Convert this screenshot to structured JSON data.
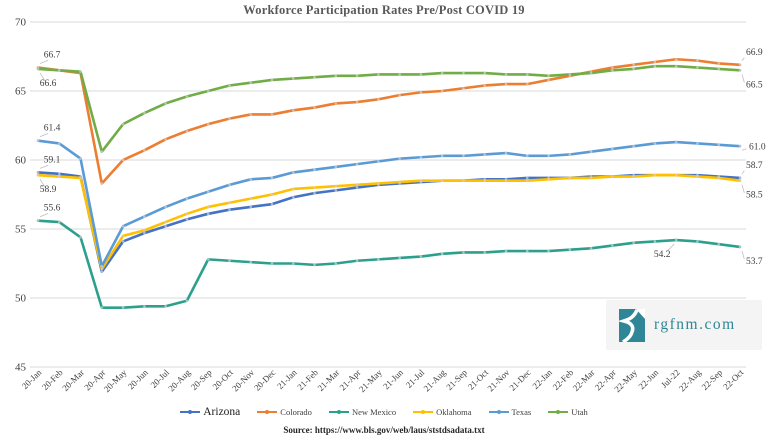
{
  "title": "Workforce Participation Rates Pre/Post COVID 19",
  "source": "Source: https://www.bls.gov/web/laus/ststdsadata.txt",
  "logo": {
    "text": "rgfnm.com",
    "color": "#2E8696",
    "icon": "river-icon"
  },
  "colors": {
    "grid": "#D9D9D9",
    "axis_text": "#404040",
    "title_text": "#595959",
    "annotation_text": "#404040",
    "leader": "#BFBFBF",
    "marker_dot": "#CFCFCF"
  },
  "chart_data": {
    "type": "line",
    "title": "Workforce Participation Rates Pre/Post COVID 19",
    "xlabel": "",
    "ylabel": "",
    "ylim": [
      45,
      70
    ],
    "y_ticks": [
      70,
      65,
      60,
      55,
      50,
      45
    ],
    "grid": "horizontal",
    "legend_position": "bottom",
    "x_categories": [
      "20-Jan",
      "20-Feb",
      "20-Mar",
      "20-Apr",
      "20-May",
      "20-Jun",
      "20-Jul",
      "20-Aug",
      "20-Sep",
      "20-Oct",
      "20-Nov",
      "20-Dec",
      "21-Jan",
      "21-Feb",
      "21-Mar",
      "21-Apr",
      "21-May",
      "21-Jun",
      "21-Jul",
      "21-Aug",
      "21-Sep",
      "21-Oct",
      "21-Nov",
      "21-Dec",
      "22-Jan",
      "22-Feb",
      "22-Mar",
      "22-Apr",
      "22-May",
      "22-Jun",
      "Jul-22",
      "22-Aug",
      "22-Sep",
      "22-Oct"
    ],
    "series": [
      {
        "name": "Arizona",
        "color": "#4472C4",
        "legend_emphasis": true,
        "values": [
          59.1,
          59.0,
          58.8,
          51.9,
          54.1,
          54.7,
          55.2,
          55.7,
          56.1,
          56.4,
          56.6,
          56.8,
          57.3,
          57.6,
          57.8,
          58.0,
          58.2,
          58.3,
          58.4,
          58.5,
          58.5,
          58.6,
          58.6,
          58.7,
          58.7,
          58.7,
          58.8,
          58.8,
          58.9,
          58.9,
          58.9,
          58.9,
          58.8,
          58.7
        ]
      },
      {
        "name": "Colorado",
        "color": "#ED7D31",
        "legend_emphasis": false,
        "values": [
          66.7,
          66.5,
          66.3,
          58.3,
          60.0,
          60.7,
          61.5,
          62.1,
          62.6,
          63.0,
          63.3,
          63.3,
          63.6,
          63.8,
          64.1,
          64.2,
          64.4,
          64.7,
          64.9,
          65.0,
          65.2,
          65.4,
          65.5,
          65.5,
          65.8,
          66.1,
          66.4,
          66.7,
          66.9,
          67.1,
          67.3,
          67.2,
          67.0,
          66.9
        ]
      },
      {
        "name": "New Mexico",
        "color": "#2CA08C",
        "legend_emphasis": false,
        "values": [
          55.6,
          55.5,
          54.4,
          49.3,
          49.3,
          49.4,
          49.4,
          49.8,
          52.8,
          52.7,
          52.6,
          52.5,
          52.5,
          52.4,
          52.5,
          52.7,
          52.8,
          52.9,
          53.0,
          53.2,
          53.3,
          53.3,
          53.4,
          53.4,
          53.4,
          53.5,
          53.6,
          53.8,
          54.0,
          54.1,
          54.2,
          54.1,
          53.9,
          53.7
        ]
      },
      {
        "name": "Oklahoma",
        "color": "#FFC000",
        "legend_emphasis": false,
        "values": [
          58.9,
          58.8,
          58.7,
          52.1,
          54.5,
          54.9,
          55.5,
          56.1,
          56.6,
          56.9,
          57.2,
          57.5,
          57.9,
          58.0,
          58.1,
          58.2,
          58.3,
          58.4,
          58.5,
          58.5,
          58.5,
          58.5,
          58.5,
          58.5,
          58.6,
          58.7,
          58.7,
          58.8,
          58.8,
          58.9,
          58.9,
          58.8,
          58.7,
          58.5
        ]
      },
      {
        "name": "Texas",
        "color": "#5B9BD5",
        "legend_emphasis": false,
        "values": [
          61.4,
          61.2,
          60.1,
          52.3,
          55.2,
          55.9,
          56.6,
          57.2,
          57.7,
          58.2,
          58.6,
          58.7,
          59.1,
          59.3,
          59.5,
          59.7,
          59.9,
          60.1,
          60.2,
          60.3,
          60.3,
          60.4,
          60.5,
          60.3,
          60.3,
          60.4,
          60.6,
          60.8,
          61.0,
          61.2,
          61.3,
          61.2,
          61.1,
          61.0
        ]
      },
      {
        "name": "Utah",
        "color": "#70AD47",
        "legend_emphasis": false,
        "values": [
          66.6,
          66.5,
          66.4,
          60.6,
          62.6,
          63.4,
          64.1,
          64.6,
          65.0,
          65.4,
          65.6,
          65.8,
          65.9,
          66.0,
          66.1,
          66.1,
          66.2,
          66.2,
          66.2,
          66.3,
          66.3,
          66.3,
          66.2,
          66.2,
          66.1,
          66.2,
          66.3,
          66.5,
          66.6,
          66.8,
          66.8,
          66.7,
          66.6,
          66.5
        ]
      }
    ],
    "point_labels": [
      {
        "series": "Colorado",
        "index": 0,
        "text": "66.7",
        "placement": "above"
      },
      {
        "series": "Utah",
        "index": 0,
        "text": "66.6",
        "placement": "below"
      },
      {
        "series": "Texas",
        "index": 0,
        "text": "61.4",
        "placement": "above"
      },
      {
        "series": "Arizona",
        "index": 0,
        "text": "59.1",
        "placement": "above"
      },
      {
        "series": "Oklahoma",
        "index": 0,
        "text": "58.9",
        "placement": "below"
      },
      {
        "series": "New Mexico",
        "index": 0,
        "text": "55.6",
        "placement": "above"
      },
      {
        "series": "Colorado",
        "index": 33,
        "text": "66.9",
        "placement": "above"
      },
      {
        "series": "Utah",
        "index": 33,
        "text": "66.5",
        "placement": "below"
      },
      {
        "series": "Texas",
        "index": 33,
        "text": "61.0",
        "placement": "right"
      },
      {
        "series": "Arizona",
        "index": 33,
        "text": "58.7",
        "placement": "above"
      },
      {
        "series": "Oklahoma",
        "index": 33,
        "text": "58.5",
        "placement": "below"
      },
      {
        "series": "New Mexico",
        "index": 30,
        "text": "54.2",
        "placement": "below"
      },
      {
        "series": "New Mexico",
        "index": 33,
        "text": "53.7",
        "placement": "below"
      }
    ]
  }
}
